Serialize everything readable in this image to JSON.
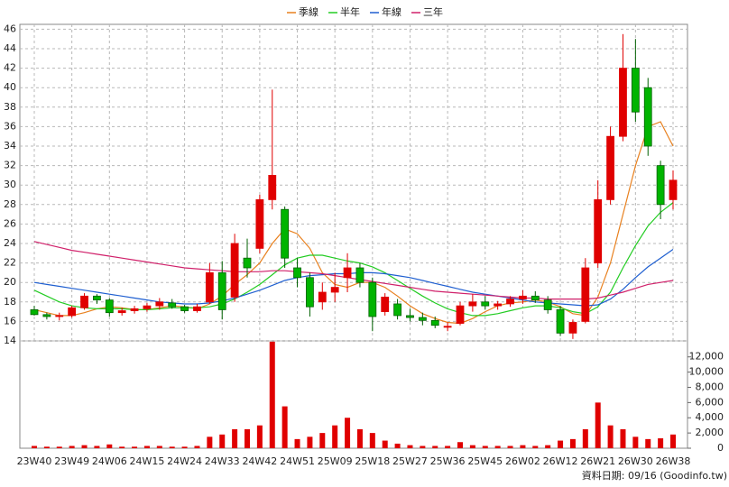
{
  "chart_data": {
    "type": "candlestick",
    "categories": [
      "23W40",
      null,
      null,
      "23W49",
      null,
      null,
      "24W06",
      null,
      null,
      "24W15",
      null,
      null,
      "24W24",
      null,
      null,
      "24W33",
      null,
      null,
      "24W42",
      null,
      null,
      "24W51",
      null,
      null,
      "25W09",
      null,
      null,
      "25W18",
      null,
      null,
      "25W27",
      null,
      null,
      "25W36",
      null,
      null,
      "25W45",
      null,
      null,
      "26W02",
      null,
      null,
      "26W12",
      null,
      null,
      "26W21",
      null,
      null,
      "26W30",
      null,
      null,
      "26W38"
    ],
    "open": [
      17.2,
      16.7,
      16.5,
      16.6,
      17.4,
      18.6,
      18.2,
      16.9,
      17.1,
      17.3,
      17.6,
      17.9,
      17.5,
      17.1,
      18.0,
      21.0,
      18.5,
      22.5,
      23.5,
      28.5,
      27.5,
      21.5,
      20.5,
      18.0,
      19.0,
      20.5,
      21.5,
      20.0,
      17.0,
      17.8,
      16.6,
      16.4,
      16.1,
      15.4,
      15.8,
      17.6,
      18.0,
      17.6,
      17.8,
      18.3,
      18.6,
      18.2,
      17.2,
      14.8,
      16.0,
      22.0,
      28.5,
      35.0,
      42.0,
      40.0,
      32.0,
      28.5
    ],
    "high": [
      17.6,
      16.9,
      16.9,
      17.6,
      18.9,
      18.8,
      18.4,
      17.4,
      17.6,
      17.9,
      18.4,
      18.3,
      17.7,
      17.8,
      22.0,
      22.2,
      25.0,
      24.5,
      29.0,
      39.8,
      27.8,
      22.5,
      21.0,
      20.0,
      21.0,
      23.0,
      22.0,
      20.5,
      18.9,
      18.3,
      17.3,
      16.9,
      16.5,
      15.9,
      18.0,
      18.8,
      18.6,
      18.1,
      18.6,
      19.2,
      19.1,
      18.6,
      17.6,
      16.2,
      22.5,
      30.5,
      36.0,
      45.5,
      45.0,
      41.0,
      32.5,
      31.5
    ],
    "low": [
      16.6,
      16.2,
      16.1,
      16.4,
      17.2,
      17.8,
      16.5,
      16.6,
      16.8,
      17.0,
      17.2,
      17.3,
      16.9,
      16.9,
      17.8,
      16.2,
      18.0,
      20.5,
      23.0,
      27.5,
      21.5,
      19.5,
      16.5,
      17.2,
      18.0,
      19.0,
      19.5,
      15.0,
      16.6,
      16.2,
      16.0,
      15.6,
      15.3,
      15.0,
      15.6,
      17.0,
      17.2,
      17.2,
      17.5,
      17.8,
      17.9,
      16.8,
      14.5,
      14.2,
      15.8,
      21.5,
      28.0,
      34.5,
      36.5,
      33.0,
      26.5,
      27.5
    ],
    "close": [
      16.7,
      16.5,
      16.6,
      17.4,
      18.6,
      18.2,
      16.9,
      17.1,
      17.3,
      17.6,
      18.0,
      17.5,
      17.1,
      17.5,
      21.0,
      17.2,
      24.0,
      21.5,
      28.5,
      31.0,
      22.5,
      20.5,
      17.5,
      19.0,
      19.5,
      21.5,
      20.0,
      16.5,
      18.5,
      16.6,
      16.4,
      16.1,
      15.6,
      15.5,
      17.6,
      18.0,
      17.6,
      17.8,
      18.3,
      18.6,
      18.2,
      17.2,
      14.8,
      15.9,
      21.5,
      28.5,
      35.0,
      42.0,
      37.5,
      34.0,
      28.0,
      30.5
    ],
    "up_color": "#e00000",
    "down_color": "#00b400",
    "lines": [
      {
        "name": "季線",
        "color": "#e8801e",
        "values": [
          17.2,
          16.9,
          16.6,
          16.6,
          16.9,
          17.3,
          17.5,
          17.4,
          17.2,
          17.2,
          17.4,
          17.6,
          17.5,
          17.3,
          17.8,
          18.6,
          19.8,
          20.8,
          22.0,
          24.0,
          25.5,
          25.0,
          23.5,
          21.0,
          19.8,
          19.5,
          20.0,
          20.0,
          19.5,
          18.6,
          17.6,
          16.8,
          16.3,
          15.9,
          15.8,
          16.3,
          17.0,
          17.6,
          17.9,
          18.0,
          18.2,
          18.0,
          17.5,
          16.8,
          16.6,
          18.5,
          22,
          27,
          32,
          36,
          36.5,
          34
        ]
      },
      {
        "name": "半年",
        "color": "#22cc22",
        "values": [
          19.2,
          18.6,
          18.0,
          17.6,
          17.4,
          17.3,
          17.3,
          17.3,
          17.2,
          17.2,
          17.3,
          17.4,
          17.4,
          17.4,
          17.5,
          17.8,
          18.3,
          19.0,
          19.8,
          20.8,
          21.8,
          22.5,
          22.8,
          22.8,
          22.5,
          22.2,
          22.0,
          21.6,
          21.0,
          20.2,
          19.4,
          18.6,
          17.9,
          17.3,
          16.9,
          16.6,
          16.6,
          16.8,
          17.1,
          17.4,
          17.6,
          17.6,
          17.4,
          17.0,
          16.8,
          17.5,
          19.0,
          21.5,
          23.8,
          25.8,
          27.2,
          28.2
        ]
      },
      {
        "name": "年線",
        "color": "#1f5fd0",
        "values": [
          20.0,
          19.8,
          19.6,
          19.4,
          19.2,
          19.0,
          18.8,
          18.6,
          18.4,
          18.2,
          18.0,
          17.9,
          17.8,
          17.8,
          17.9,
          18.1,
          18.4,
          18.8,
          19.2,
          19.7,
          20.2,
          20.5,
          20.7,
          20.8,
          20.9,
          20.9,
          21.0,
          21.0,
          20.9,
          20.7,
          20.5,
          20.2,
          19.9,
          19.6,
          19.3,
          19.0,
          18.8,
          18.6,
          18.4,
          18.2,
          18.0,
          17.9,
          17.8,
          17.7,
          17.6,
          17.7,
          18.3,
          19.3,
          20.5,
          21.6,
          22.5,
          23.4
        ]
      },
      {
        "name": "三年",
        "color": "#d0206a",
        "values": [
          24.2,
          23.9,
          23.6,
          23.3,
          23.1,
          22.9,
          22.7,
          22.5,
          22.3,
          22.1,
          21.9,
          21.7,
          21.5,
          21.4,
          21.3,
          21.2,
          21.1,
          21.1,
          21.1,
          21.2,
          21.2,
          21.1,
          21.0,
          20.9,
          20.7,
          20.5,
          20.3,
          20.1,
          19.9,
          19.7,
          19.5,
          19.3,
          19.1,
          19.0,
          18.9,
          18.8,
          18.7,
          18.6,
          18.5,
          18.4,
          18.4,
          18.3,
          18.3,
          18.3,
          18.3,
          18.4,
          18.7,
          19.0,
          19.4,
          19.8,
          20.0,
          20.2
        ]
      }
    ],
    "ylim": [
      14,
      46.5
    ],
    "yticks": [
      14,
      16,
      18,
      20,
      22,
      24,
      26,
      28,
      30,
      32,
      34,
      36,
      38,
      40,
      42,
      44,
      46
    ],
    "grid": true,
    "volume": {
      "color": "#e00000",
      "ylim": [
        0,
        14100
      ],
      "yticks": [
        0,
        {
          "value": 2000,
          "label": "2,000"
        },
        {
          "value": 4000,
          "label": "4,000"
        },
        {
          "value": 6000,
          "label": "6,000"
        },
        {
          "value": 8000,
          "label": "8,000"
        },
        {
          "value": 10000,
          "label": "10,000"
        },
        {
          "value": 12000,
          "label": "12,000"
        }
      ],
      "values": [
        300,
        200,
        200,
        300,
        400,
        300,
        500,
        200,
        200,
        300,
        300,
        200,
        200,
        300,
        1500,
        1800,
        2500,
        2500,
        3000,
        14000,
        5500,
        1200,
        1500,
        2000,
        3000,
        4000,
        2500,
        2000,
        1000,
        600,
        400,
        300,
        300,
        300,
        800,
        400,
        300,
        300,
        300,
        400,
        300,
        400,
        1000,
        1200,
        2500,
        6000,
        3000,
        2500,
        1500,
        1200,
        1300,
        1800
      ]
    },
    "source": "資料日期: 09/16 (Goodinfo.tw)"
  }
}
